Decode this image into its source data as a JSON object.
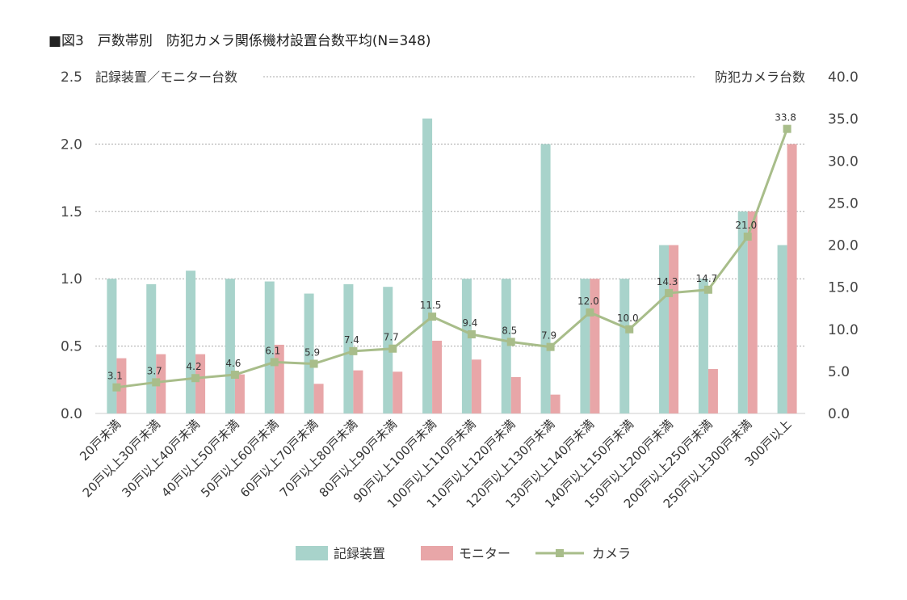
{
  "chart_data": {
    "type": "bar",
    "title": "■図3　戸数帯別　防犯カメラ関係機材設置台数平均(N=348)",
    "ylabel_left": "記録装置／モニター台数",
    "ylabel_right": "防犯カメラ台数",
    "ylim_left": [
      0,
      2.5
    ],
    "ylim_right": [
      0,
      40
    ],
    "yticks_left": [
      "0.0",
      "0.5",
      "1.0",
      "1.5",
      "2.0",
      "2.5"
    ],
    "yticks_right": [
      "0.0",
      "5.0",
      "10.0",
      "15.0",
      "20.0",
      "25.0",
      "30.0",
      "35.0",
      "40.0"
    ],
    "grid": true,
    "legend_position": "bottom",
    "categories": [
      "20戸未満",
      "20戸以上30戸未満",
      "30戸以上40戸未満",
      "40戸以上50戸未満",
      "50戸以上60戸未満",
      "60戸以上70戸未満",
      "70戸以上80戸未満",
      "80戸以上90戸未満",
      "90戸以上100戸未満",
      "100戸以上110戸未満",
      "110戸以上120戸未満",
      "120戸以上130戸未満",
      "130戸以上140戸未満",
      "140戸以上150戸未満",
      "150戸以上200戸未満",
      "200戸以上250戸未満",
      "250戸以上300戸未満",
      "300戸以上"
    ],
    "series": [
      {
        "name": "記録装置",
        "kind": "bar",
        "axis": "left",
        "color": "#a8d3cb",
        "values": [
          1.0,
          0.96,
          1.06,
          1.0,
          0.98,
          0.89,
          0.96,
          0.94,
          2.19,
          1.0,
          1.0,
          2.0,
          1.0,
          1.0,
          1.25,
          1.0,
          1.5,
          1.25
        ]
      },
      {
        "name": "モニター",
        "kind": "bar",
        "axis": "left",
        "color": "#e8a6a8",
        "values": [
          0.41,
          0.44,
          0.44,
          0.29,
          0.51,
          0.22,
          0.32,
          0.31,
          0.54,
          0.4,
          0.27,
          0.14,
          1.0,
          0.0,
          1.25,
          0.33,
          1.5,
          2.0
        ]
      },
      {
        "name": "カメラ",
        "kind": "line",
        "axis": "right",
        "color": "#a8bd8a",
        "values": [
          3.1,
          3.7,
          4.2,
          4.6,
          6.1,
          5.9,
          7.4,
          7.7,
          11.5,
          9.4,
          8.5,
          7.9,
          12.0,
          10.0,
          14.3,
          14.7,
          21.0,
          33.8
        ],
        "labels": [
          "3.1",
          "3.7",
          "4.2",
          "4.6",
          "6.1",
          "5.9",
          "7.4",
          "7.7",
          "11.5",
          "9.4",
          "8.5",
          "7.9",
          "12.0",
          "10.0",
          "14.3",
          "14.7",
          "21.0",
          "33.8"
        ]
      }
    ]
  }
}
